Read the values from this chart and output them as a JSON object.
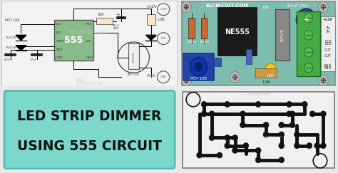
{
  "bg_color": "#e8e8e8",
  "schematic_bg": "#f2f2f2",
  "schematic_border": "#bbbbbb",
  "pcb_component_bg": "#7dbdad",
  "pcb_component_border": "#6aada0",
  "pcb_trace_bg": "#f0f0f0",
  "pcb_trace_border": "#888888",
  "label_bg": "#7dd8cc",
  "label_border": "#55bbb5",
  "label_text1": "LED STRIP DIMMER",
  "label_text2": "USING 555 CIRCUIT",
  "ic_color": "#88bb88",
  "ic_text": "555",
  "ne555_color": "#1a1a1a",
  "mosfet_color": "#bbbbbb",
  "pot_color": "#2244aa",
  "cap_color": "#334499",
  "res_color_orange": "#cc6633",
  "res_color_tan": "#cc9944",
  "term_color": "#44aa44",
  "led_color": "#ffcc00",
  "trace_color": "#111111",
  "white": "#ffffff",
  "dark": "#222222"
}
